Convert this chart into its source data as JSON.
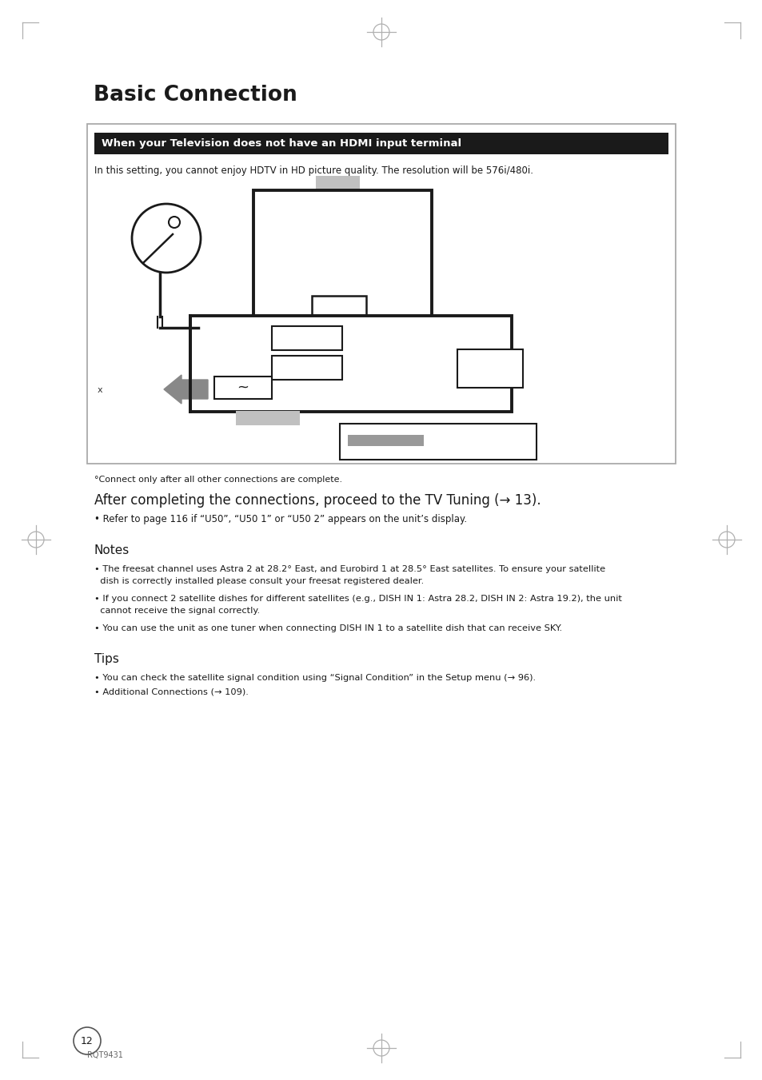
{
  "title": "Basic Connection",
  "page_num": "12",
  "footer_text": "RQT9431",
  "black_header": "When your Television does not have an HDMI input terminal",
  "intro_text": "In this setting, you cannot enjoy HDTV in HD picture quality. The resolution will be 576i/480i.",
  "footnote": "°Connect only after all other connections are complete.",
  "after_text": "After completing the connections, proceed to the TV Tuning (→ 13).",
  "bullet1": "• Refer to page 116 if “U50”, “U50 1” or “U50 2” appears on the unit’s display.",
  "notes_title": "Notes",
  "note1a": "• The freesat channel uses Astra 2 at 28.2° East, and Eurobird 1 at 28.5° East satellites. To ensure your satellite",
  "note1b": "  dish is correctly installed please consult your freesat registered dealer.",
  "note2a": "• If you connect 2 satellite dishes for different satellites (e.g., DISH IN 1: Astra 28.2, DISH IN 2: Astra 19.2), the unit",
  "note2b": "  cannot receive the signal correctly.",
  "note3": "• You can use the unit as one tuner when connecting DISH IN 1 to a satellite dish that can receive SKY.",
  "tips_title": "Tips",
  "tip1": "• You can check the satellite signal condition using “Signal Condition” in the Setup menu (→ 96).",
  "tip2": "• Additional Connections (→ 109).",
  "bg_color": "#ffffff",
  "black_color": "#1a1a1a",
  "gray_color": "#999999",
  "light_gray": "#bbbbbb",
  "mid_gray": "#aaaaaa",
  "x_label": "x"
}
